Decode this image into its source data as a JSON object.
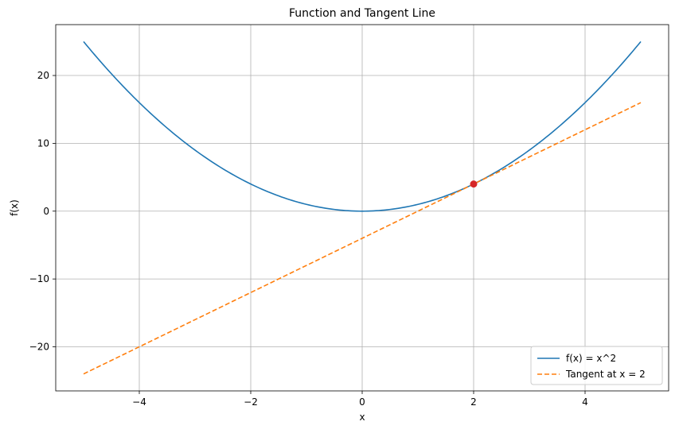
{
  "chart_data": {
    "type": "line",
    "title": "Function and Tangent Line",
    "xlabel": "x",
    "ylabel": "f(x)",
    "xlim": [
      -5.5,
      5.5
    ],
    "ylim": [
      -26.5,
      27.5
    ],
    "xticks": [
      -4,
      -2,
      0,
      2,
      4
    ],
    "yticks": [
      -20,
      -10,
      0,
      10,
      20
    ],
    "xtick_labels": [
      "−4",
      "−2",
      "0",
      "2",
      "4"
    ],
    "ytick_labels": [
      "−20",
      "−10",
      "0",
      "10",
      "20"
    ],
    "grid": true,
    "legend_position": "lower-right",
    "series": [
      {
        "name": "f(x) = x^2",
        "style": "solid",
        "color": "#1f77b4",
        "x": [
          -5,
          -4,
          -3,
          -2,
          -1,
          0,
          1,
          2,
          3,
          4,
          5
        ],
        "y": [
          25,
          16,
          9,
          4,
          1,
          0,
          1,
          4,
          9,
          16,
          25
        ]
      },
      {
        "name": "Tangent at x = 2",
        "style": "dashed",
        "color": "#ff7f0e",
        "x": [
          -5,
          5
        ],
        "y": [
          -24,
          16
        ]
      }
    ],
    "points": [
      {
        "x": 2,
        "y": 4,
        "color": "#d62728"
      }
    ]
  }
}
